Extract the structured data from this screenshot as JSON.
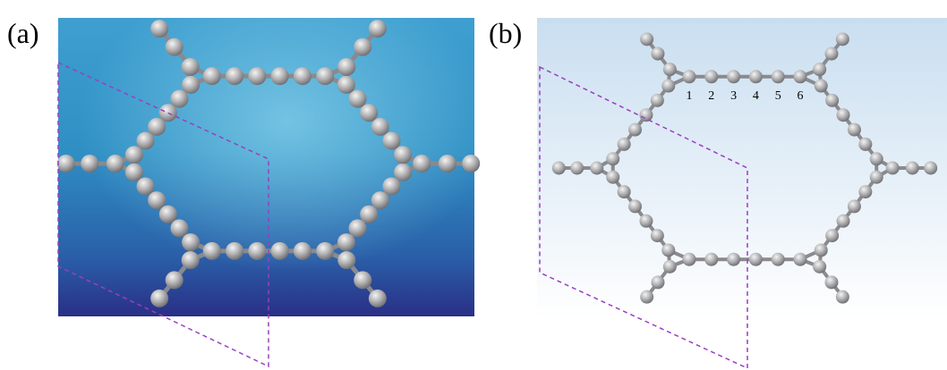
{
  "panels": [
    {
      "label": "(a)"
    },
    {
      "label": "(b)",
      "atom_labels": [
        "1",
        "2",
        "3",
        "4",
        "5",
        "6"
      ]
    }
  ]
}
